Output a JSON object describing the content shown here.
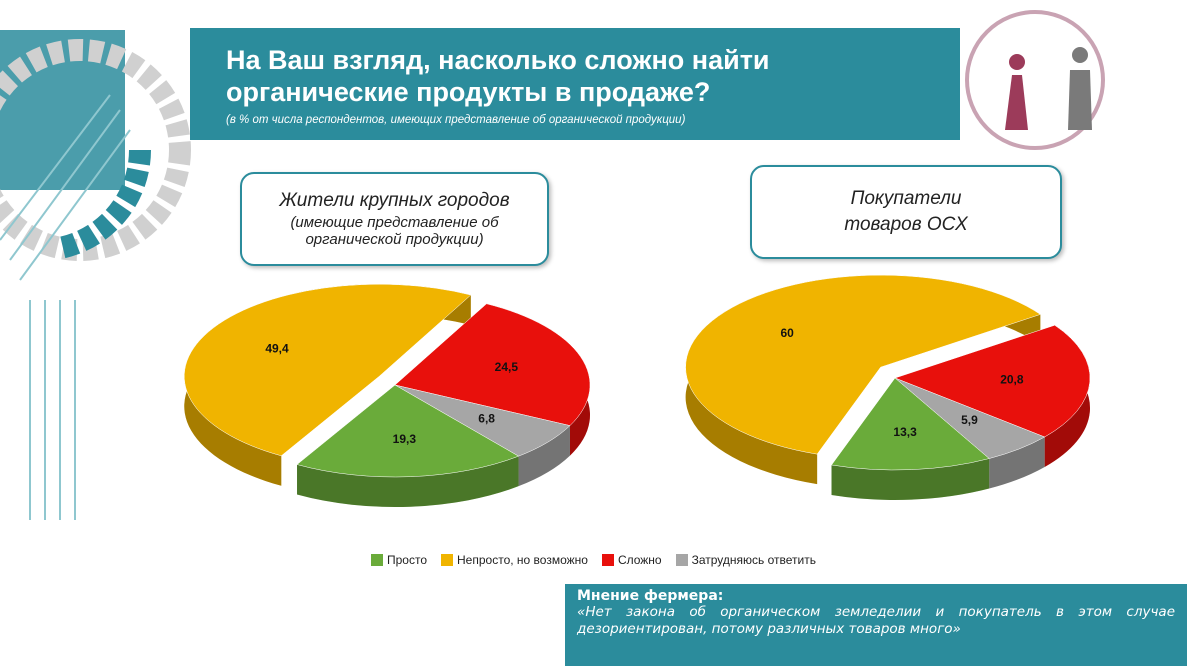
{
  "header": {
    "title": "На Ваш взгляд, насколько сложно найти органические продукты в продаже?",
    "subtitle": "(в % от числа респондентов, имеющих представление об органической продукции)"
  },
  "legend": {
    "labels": [
      "Просто",
      "Непросто, но возможно",
      "Сложно",
      "Затрудняюсь ответить"
    ],
    "colors": [
      "#6aab3a",
      "#f0b400",
      "#e8100c",
      "#a6a6a6"
    ]
  },
  "chart_data": [
    {
      "type": "pie",
      "title": "Жители крупных городов",
      "subtitle": "(имеющие представление об органической продукции)",
      "values": [
        19.3,
        49.4,
        24.5,
        6.8
      ],
      "value_labels": [
        "19,3",
        "49,4",
        "24,5",
        "6,8"
      ]
    },
    {
      "type": "pie",
      "title": "Покупатели товаров ОСХ",
      "values": [
        13.3,
        60,
        20.8,
        5.9
      ],
      "value_labels": [
        "13,3",
        "60",
        "20,8",
        "5,9"
      ]
    }
  ],
  "quote": {
    "title": "Мнение фермера:",
    "text": "«Нет закона об органическом земледелии и покупатель в этом случае дезориентирован, потому различных товаров много»"
  }
}
